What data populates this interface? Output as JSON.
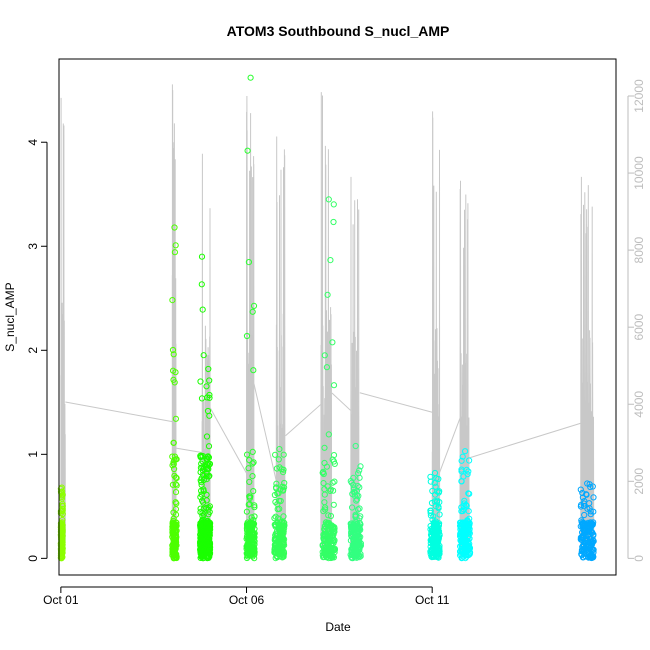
{
  "chart_data": {
    "type": "scatter",
    "title": "ATOM3 Southbound S_nucl_AMP",
    "xlabel": "Date",
    "ylabel": "S_nucl_AMP",
    "x_ticks": [
      "Oct 01",
      "Oct 06",
      "Oct 11"
    ],
    "x_tick_days": [
      1,
      6,
      11
    ],
    "xlim_days": [
      0.95,
      15.95
    ],
    "ylim": [
      -0.16,
      4.8
    ],
    "y_ticks": [
      0,
      1,
      2,
      3,
      4
    ],
    "y2_ticks": [
      0,
      2000,
      4000,
      6000,
      8000,
      10000,
      12000
    ],
    "y2lim": [
      0,
      12500
    ],
    "grid": false,
    "colors": {
      "series_line": "#c8c8c8",
      "right_axis": "#bdbdbd",
      "frame": "#000000"
    },
    "point_clusters": [
      {
        "x_start": 1.0,
        "x_end": 1.05,
        "y_max": 0.68,
        "color": "#8cff00"
      },
      {
        "x_start": 4.0,
        "x_end": 4.12,
        "y_max": 3.18,
        "color": "#4dff00"
      },
      {
        "x_start": 4.75,
        "x_end": 4.85,
        "y_max": 2.9,
        "color": "#1aff00"
      },
      {
        "x_start": 4.92,
        "x_end": 5.02,
        "y_max": 1.82,
        "color": "#1aff00"
      },
      {
        "x_start": 6.0,
        "x_end": 6.22,
        "y_max": 4.62,
        "color": "#2bff30"
      },
      {
        "x_start": 6.75,
        "x_end": 7.02,
        "y_max": 1.05,
        "color": "#33ff55"
      },
      {
        "x_start": 8.05,
        "x_end": 8.38,
        "y_max": 3.45,
        "color": "#33ff66"
      },
      {
        "x_start": 8.8,
        "x_end": 9.08,
        "y_max": 1.08,
        "color": "#33ff80"
      },
      {
        "x_start": 10.95,
        "x_end": 11.2,
        "y_max": 0.82,
        "color": "#00ffe0"
      },
      {
        "x_start": 11.75,
        "x_end": 12.02,
        "y_max": 1.03,
        "color": "#00ffff"
      },
      {
        "x_start": 15.0,
        "x_end": 15.35,
        "y_max": 0.72,
        "color": "#00a8ff"
      }
    ],
    "line_segments": [
      {
        "x_start": 1.0,
        "x_end": 1.12,
        "y2_max": 11950
      },
      {
        "x_start": 4.0,
        "x_end": 4.1,
        "y2_max": 12300
      },
      {
        "x_start": 4.8,
        "x_end": 5.02,
        "y2_max": 10500
      },
      {
        "x_start": 6.0,
        "x_end": 6.2,
        "y2_max": 12000
      },
      {
        "x_start": 6.8,
        "x_end": 7.05,
        "y2_max": 10950
      },
      {
        "x_start": 8.0,
        "x_end": 8.3,
        "y2_max": 12100
      },
      {
        "x_start": 8.8,
        "x_end": 9.05,
        "y2_max": 9900
      },
      {
        "x_start": 11.0,
        "x_end": 11.2,
        "y2_max": 11600
      },
      {
        "x_start": 11.75,
        "x_end": 12.0,
        "y2_max": 9800
      },
      {
        "x_start": 15.0,
        "x_end": 15.35,
        "y2_max": 9900
      }
    ]
  }
}
